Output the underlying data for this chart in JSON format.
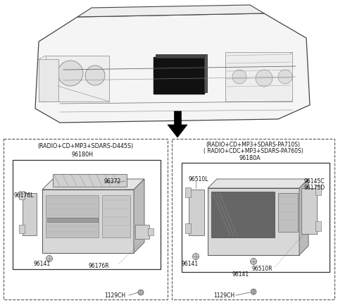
{
  "bg_color": "#ffffff",
  "fig_width": 4.8,
  "fig_height": 4.31,
  "dpi": 100,
  "dash_color": "#666666",
  "line_color": "#333333",
  "text_color": "#111111",
  "left_label": "(RADIO+CD+MP3+SDARS-D445S)",
  "left_pn": "96180H",
  "right_label1": "(RADIO+CD+MP3+SDARS-PA710S)",
  "right_label2": "( RADIO+CDC+MP3+SDARS-PA760S)",
  "right_pn": "96180A",
  "bottom_pn": "1129CH"
}
